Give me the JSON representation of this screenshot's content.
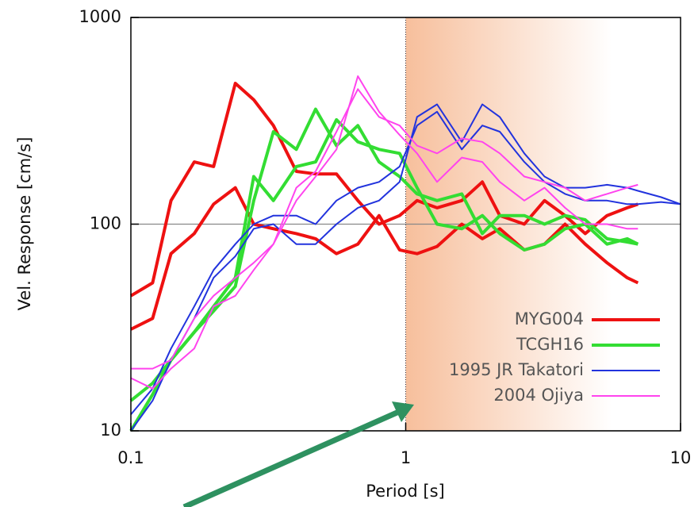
{
  "chart_data": {
    "type": "line",
    "xlabel": "Period [s]",
    "ylabel": "Vel. Response [cm/s]",
    "log_x": true,
    "log_y": true,
    "xlim": [
      0.1,
      10
    ],
    "ylim": [
      10,
      1000
    ],
    "xticks": [
      0.1,
      1,
      10
    ],
    "yticks": [
      10,
      100,
      1000
    ],
    "grid": "y",
    "legend": "lower right",
    "shaded_xrange": [
      1,
      10
    ],
    "x": [
      0.1,
      0.12,
      0.14,
      0.17,
      0.2,
      0.24,
      0.28,
      0.33,
      0.4,
      0.47,
      0.56,
      0.67,
      0.8,
      0.95,
      1.1,
      1.3,
      1.6,
      1.9,
      2.2,
      2.7,
      3.2,
      3.8,
      4.5,
      5.4,
      6.4,
      7,
      8.5,
      10
    ],
    "series": [
      {
        "name": "MYG004",
        "color": "#ee1111",
        "width": 4,
        "values": [
          [
            45,
            52,
            130,
            200,
            190,
            480,
            400,
            300,
            180,
            175,
            175,
            130,
            100,
            110,
            130,
            120,
            130,
            160,
            110,
            100,
            130,
            110,
            90,
            110,
            120,
            125,
            null,
            null
          ],
          [
            31,
            35,
            72,
            90,
            125,
            150,
            100,
            95,
            90,
            85,
            72,
            80,
            110,
            75,
            72,
            78,
            100,
            85,
            95,
            75,
            80,
            100,
            80,
            65,
            55,
            52,
            null,
            null
          ]
        ]
      },
      {
        "name": "TCGH16",
        "color": "#33dd33",
        "width": 4,
        "values": [
          [
            14,
            17,
            22,
            30,
            38,
            50,
            130,
            280,
            230,
            360,
            240,
            300,
            200,
            170,
            140,
            130,
            140,
            90,
            110,
            110,
            100,
            110,
            105,
            85,
            82,
            80,
            null,
            null
          ],
          [
            10,
            15,
            22,
            30,
            40,
            55,
            170,
            130,
            190,
            200,
            320,
            250,
            230,
            220,
            150,
            100,
            95,
            110,
            90,
            75,
            80,
            95,
            100,
            80,
            85,
            80,
            null,
            null
          ]
        ]
      },
      {
        "name": "1995 JR Takatori",
        "color": "#2233dd",
        "width": 2,
        "values": [
          [
            10,
            14,
            22,
            35,
            55,
            70,
            95,
            100,
            80,
            80,
            100,
            120,
            130,
            160,
            330,
            380,
            250,
            380,
            330,
            220,
            170,
            150,
            150,
            155,
            150,
            145,
            135,
            125
          ],
          [
            12,
            16,
            25,
            40,
            60,
            80,
            100,
            110,
            110,
            100,
            130,
            150,
            160,
            190,
            300,
            350,
            230,
            300,
            280,
            200,
            160,
            140,
            130,
            130,
            125,
            125,
            128,
            125
          ]
        ]
      },
      {
        "name": "2004 Ojiya",
        "color": "#ff44ee",
        "width": 2,
        "values": [
          [
            20,
            20,
            22,
            35,
            45,
            55,
            65,
            80,
            150,
            180,
            280,
            450,
            330,
            300,
            240,
            220,
            260,
            250,
            220,
            170,
            160,
            150,
            130,
            140,
            150,
            155,
            null,
            null
          ],
          [
            18,
            16,
            20,
            25,
            40,
            45,
            60,
            80,
            130,
            170,
            230,
            520,
            350,
            270,
            220,
            160,
            210,
            200,
            160,
            130,
            150,
            120,
            100,
            100,
            95,
            95,
            null,
            null
          ]
        ]
      }
    ]
  }
}
